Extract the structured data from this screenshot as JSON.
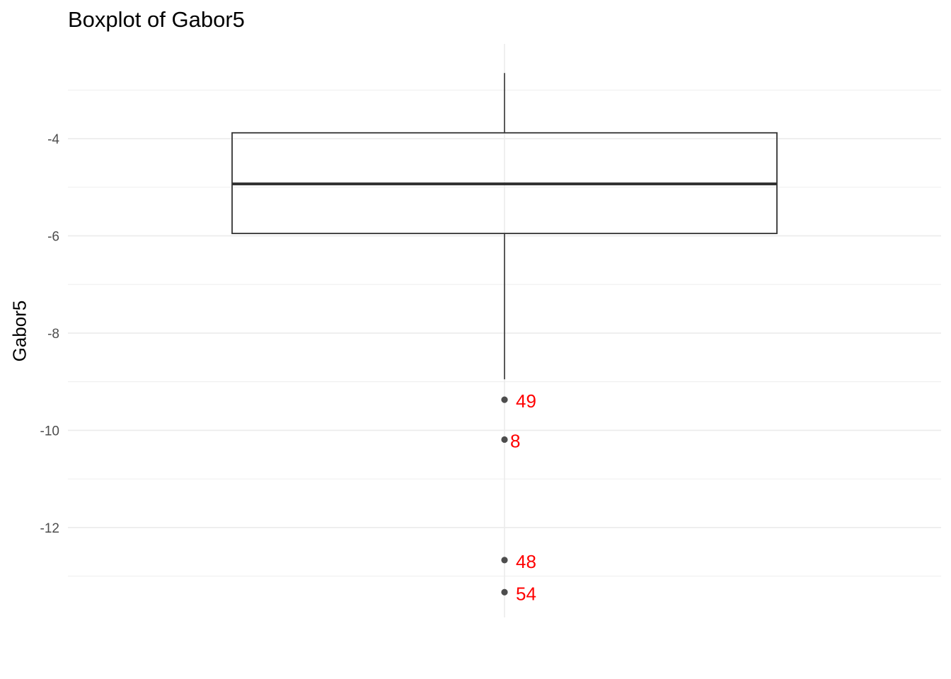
{
  "chart_data": {
    "type": "box",
    "title": "Boxplot of Gabor5",
    "xlabel": "",
    "ylabel": "Gabor5",
    "ylim": [
      -13.85,
      -2.05
    ],
    "grid": true,
    "yticks": [
      -4,
      -6,
      -8,
      -10,
      -12
    ],
    "tick_labels": [
      "-4",
      "-6",
      "-8",
      "-10",
      "-12"
    ],
    "box": {
      "whisker_high": -2.65,
      "q3": -3.88,
      "median": -4.93,
      "q1": -5.95,
      "whisker_low": -8.95
    },
    "outliers": [
      {
        "label": "49",
        "value": -9.37
      },
      {
        "label": "8",
        "value": -10.19
      },
      {
        "label": "48",
        "value": -12.67
      },
      {
        "label": "54",
        "value": -13.33
      }
    ],
    "colors": {
      "box": "#333333",
      "grid": "#ebebeb",
      "outlier_point": "#4d4d4d",
      "outlier_label": "#ff0000"
    }
  }
}
